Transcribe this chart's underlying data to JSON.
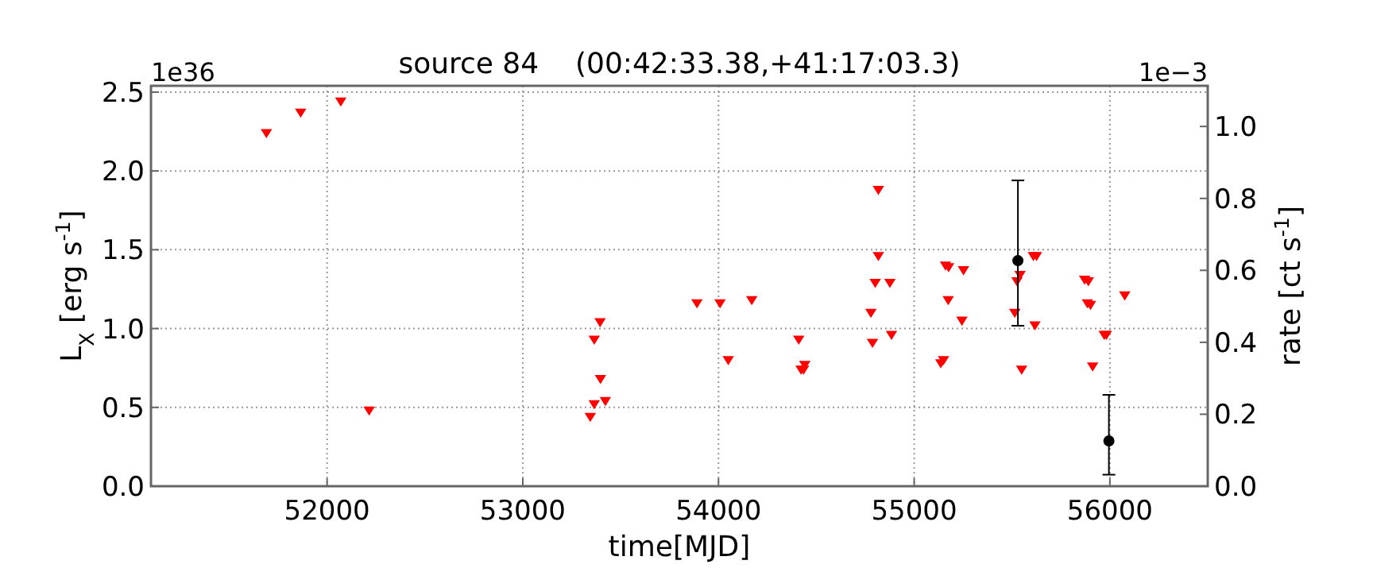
{
  "chart_data": {
    "type": "scatter",
    "title": "source 84    (00:42:33.38,+41:17:03.3)",
    "xlabel": "time[MJD]",
    "ylabel": "L$_{X}$ [erg s$^{-1}$]",
    "y2label": "rate [ct s$^{-1}$]",
    "annotations": [
      "1e36",
      "1e−3"
    ],
    "xlim": [
      51100,
      56500
    ],
    "xticks": [
      52000,
      53000,
      54000,
      55000,
      56000
    ],
    "ylim": [
      0,
      2.54
    ],
    "yticks": [
      {
        "value": 0,
        "label": "0.0"
      },
      {
        "value": 0.5,
        "label": "0.5"
      },
      {
        "value": 1,
        "label": "1.0"
      },
      {
        "value": 1.5,
        "label": "1.5"
      },
      {
        "value": 2,
        "label": "2.0"
      },
      {
        "value": 2.5,
        "label": "2.5"
      }
    ],
    "y2lim": [
      0,
      1.113
    ],
    "y2ticks": [
      {
        "value": 0,
        "label": "0.0"
      },
      {
        "value": 0.2,
        "label": "0.2"
      },
      {
        "value": 0.4,
        "label": "0.4"
      },
      {
        "value": 0.6,
        "label": "0.6"
      },
      {
        "value": 0.8,
        "label": "0.8"
      },
      {
        "value": 1,
        "label": "1.0"
      }
    ],
    "grid": true,
    "series": [
      {
        "color": "#ff0000",
        "marker": "triangle",
        "x": [
          51690,
          51865,
          52070,
          52215,
          53345,
          53365,
          53395,
          53397,
          53365,
          53422,
          53890,
          54008,
          54050,
          54170,
          54410,
          54422,
          54441,
          54435,
          54779,
          54787,
          54801,
          54817,
          54817,
          54876,
          54884,
          55136,
          55150,
          55160,
          55176,
          55174,
          55244,
          55252,
          55514,
          55525,
          55541,
          55549,
          55609,
          55625,
          55617,
          55871,
          55890,
          55885,
          55901,
          55912,
          55971,
          55982,
          56076
        ],
        "values": [
          2.24,
          2.37,
          2.44,
          0.48,
          0.44,
          0.93,
          1.04,
          0.68,
          0.52,
          0.54,
          1.16,
          1.16,
          0.8,
          1.18,
          0.93,
          0.74,
          0.77,
          0.74,
          1.1,
          0.91,
          1.29,
          1.88,
          1.46,
          1.29,
          0.96,
          0.78,
          0.8,
          1.4,
          1.39,
          1.18,
          1.05,
          1.37,
          1.1,
          1.3,
          1.34,
          0.74,
          1.46,
          1.46,
          1.02,
          1.31,
          1.3,
          1.16,
          1.15,
          0.76,
          0.96,
          0.96,
          1.21
        ]
      },
      {
        "color": "#000000",
        "marker": "circle",
        "axis": "y2",
        "x": [
          55530,
          55995
        ],
        "values": [
          0.627,
          0.126
        ],
        "errors": [
          [
            0.446,
            0.85
          ],
          [
            0.032,
            0.254
          ]
        ]
      }
    ]
  }
}
